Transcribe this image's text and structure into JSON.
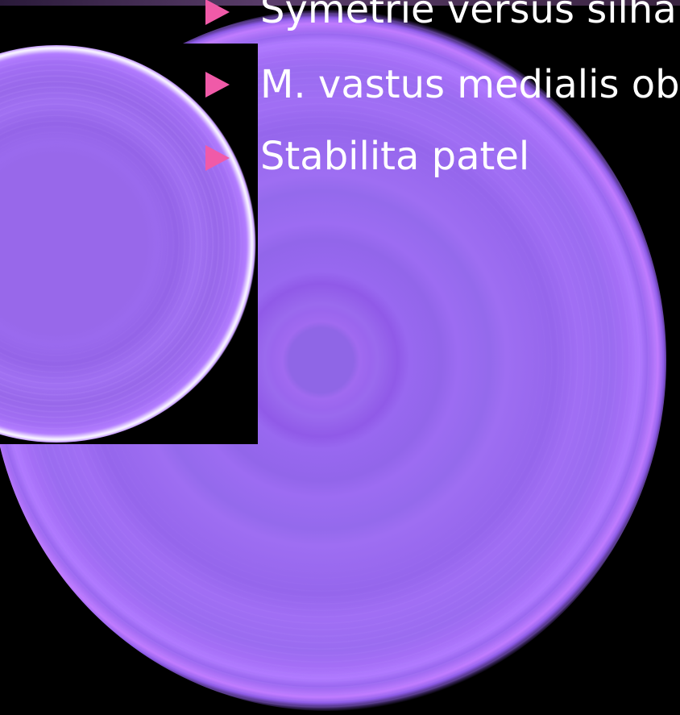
{
  "slide": {
    "bullets": [
      {
        "text": "Symetrie versus silhar"
      },
      {
        "text": "M. vastus medialis ob"
      },
      {
        "text": "Stabilita patel"
      }
    ]
  },
  "colors": {
    "background": "#000000",
    "bullet_arrow": "#f05aa8",
    "text": "#ffffff",
    "disc_purple": "#9a6aee"
  },
  "icons": {
    "bullet": "play-triangle-icon"
  }
}
